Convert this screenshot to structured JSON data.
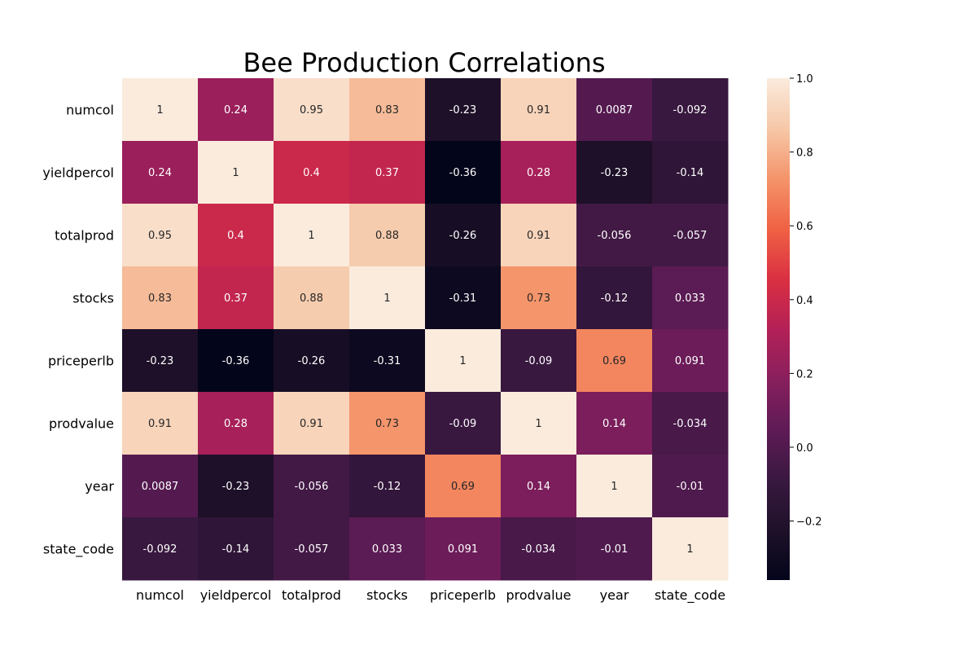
{
  "chart_data": {
    "type": "heatmap",
    "title": "Bee Production Correlations",
    "x_labels": [
      "numcol",
      "yieldpercol",
      "totalprod",
      "stocks",
      "priceperlb",
      "prodvalue",
      "year",
      "state_code"
    ],
    "y_labels": [
      "numcol",
      "yieldpercol",
      "totalprod",
      "stocks",
      "priceperlb",
      "prodvalue",
      "year",
      "state_code"
    ],
    "matrix": [
      [
        1,
        0.24,
        0.95,
        0.83,
        -0.23,
        0.91,
        0.0087,
        -0.092
      ],
      [
        0.24,
        1,
        0.4,
        0.37,
        -0.36,
        0.28,
        -0.23,
        -0.14
      ],
      [
        0.95,
        0.4,
        1,
        0.88,
        -0.26,
        0.91,
        -0.056,
        -0.057
      ],
      [
        0.83,
        0.37,
        0.88,
        1,
        -0.31,
        0.73,
        -0.12,
        0.033
      ],
      [
        -0.23,
        -0.36,
        -0.26,
        -0.31,
        1,
        -0.09,
        0.69,
        0.091
      ],
      [
        0.91,
        0.28,
        0.91,
        0.73,
        -0.09,
        1,
        0.14,
        -0.034
      ],
      [
        0.0087,
        -0.23,
        -0.056,
        -0.12,
        0.69,
        0.14,
        1,
        -0.01
      ],
      [
        -0.092,
        -0.14,
        -0.057,
        0.033,
        0.091,
        -0.034,
        -0.01,
        1
      ]
    ],
    "annotations": [
      [
        "1",
        "0.24",
        "0.95",
        "0.83",
        "-0.23",
        "0.91",
        "0.0087",
        "-0.092"
      ],
      [
        "0.24",
        "1",
        "0.4",
        "0.37",
        "-0.36",
        "0.28",
        "-0.23",
        "-0.14"
      ],
      [
        "0.95",
        "0.4",
        "1",
        "0.88",
        "-0.26",
        "0.91",
        "-0.056",
        "-0.057"
      ],
      [
        "0.83",
        "0.37",
        "0.88",
        "1",
        "-0.31",
        "0.73",
        "-0.12",
        "0.033"
      ],
      [
        "-0.23",
        "-0.36",
        "-0.26",
        "-0.31",
        "1",
        "-0.09",
        "0.69",
        "0.091"
      ],
      [
        "0.91",
        "0.28",
        "0.91",
        "0.73",
        "-0.09",
        "1",
        "0.14",
        "-0.034"
      ],
      [
        "0.0087",
        "-0.23",
        "-0.056",
        "-0.12",
        "0.69",
        "0.14",
        "1",
        "-0.01"
      ],
      [
        "-0.092",
        "-0.14",
        "-0.057",
        "0.033",
        "0.091",
        "-0.034",
        "-0.01",
        "1"
      ]
    ],
    "colorscale": "rocket",
    "colorbar": {
      "vmin": -0.36,
      "vmax": 1,
      "ticks": [
        1.0,
        0.8,
        0.6,
        0.4,
        0.2,
        0.0,
        -0.2
      ],
      "tick_labels": [
        "1.0",
        "0.8",
        "0.6",
        "0.4",
        "0.2",
        "0.0",
        "−0.2"
      ]
    },
    "grid": false,
    "colors": {
      "background": "#ffffff",
      "text_dark": "#262626",
      "text_light": "#ffffff",
      "axis_text": "#000000"
    }
  }
}
